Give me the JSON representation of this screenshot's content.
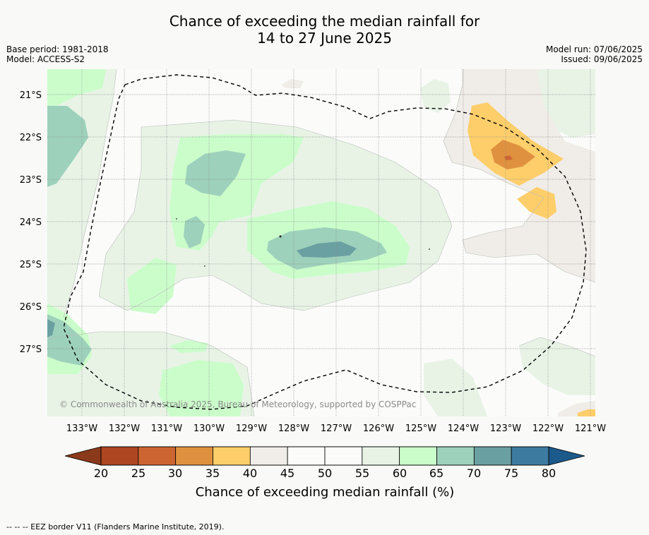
{
  "title": {
    "line1": "Chance of exceeding the median rainfall for",
    "line2": "14 to 27 June 2025"
  },
  "meta_left": {
    "base_period": "Base period: 1981-2018",
    "model": "Model: ACCESS-S2"
  },
  "meta_right": {
    "model_run": "Model run: 07/06/2025",
    "issued": "Issued: 09/06/2025"
  },
  "map": {
    "lat_labels": [
      "21°S",
      "22°S",
      "23°S",
      "24°S",
      "25°S",
      "26°S",
      "27°S"
    ],
    "lon_labels": [
      "133°W",
      "132°W",
      "131°W",
      "130°W",
      "129°W",
      "128°W",
      "127°W",
      "126°W",
      "125°W",
      "124°W",
      "123°W",
      "122°W",
      "121°W"
    ],
    "copyright": "© Commonwealth of Australia 2025, Bureau of Meteorology, supported by COSPPac"
  },
  "colorbar": {
    "ticks": [
      "20",
      "25",
      "30",
      "35",
      "40",
      "45",
      "50",
      "55",
      "60",
      "65",
      "70",
      "75",
      "80"
    ],
    "colors": [
      "#ad4621",
      "#cc6532",
      "#e0913f",
      "#fece6a",
      "#f0ece7",
      "#fbfcfa",
      "#fbfcfa",
      "#e8f3e6",
      "#cbfdcb",
      "#9dd1bb",
      "#6ba0a2",
      "#3e7ba0"
    ],
    "under_color": "#8a3a1a",
    "over_color": "#1d5a8c",
    "label": "Chance of exceeding median rainfall (%)"
  },
  "footer": "--  --  -- EEZ border V11 (Flanders Marine Institute, 2019)."
}
